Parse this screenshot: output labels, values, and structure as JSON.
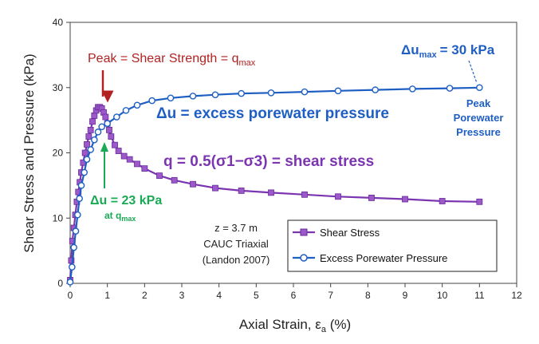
{
  "chart_data": {
    "type": "line",
    "xlabel": "Axial Strain, εa (%)",
    "ylabel": "Shear Stress and Pressure (kPa)",
    "xlim": [
      0,
      12
    ],
    "ylim": [
      0,
      40
    ],
    "x_ticks": [
      "0",
      "1",
      "2",
      "3",
      "4",
      "5",
      "6",
      "7",
      "8",
      "9",
      "10",
      "11",
      "12"
    ],
    "y_ticks": [
      "0",
      "10",
      "20",
      "30",
      "40"
    ],
    "grid": false,
    "legend_position": "bottom-right",
    "series": [
      {
        "name": "Shear Stress",
        "color": "#7b35b0",
        "marker": "square",
        "x": [
          0.0,
          0.03,
          0.06,
          0.1,
          0.14,
          0.18,
          0.22,
          0.26,
          0.3,
          0.35,
          0.4,
          0.45,
          0.5,
          0.55,
          0.6,
          0.65,
          0.7,
          0.75,
          0.8,
          0.85,
          0.9,
          0.95,
          1.0,
          1.05,
          1.1,
          1.2,
          1.3,
          1.45,
          1.6,
          1.8,
          2.0,
          2.4,
          2.8,
          3.3,
          3.9,
          4.6,
          5.4,
          6.3,
          7.2,
          8.1,
          9.0,
          10.0,
          11.0
        ],
        "y": [
          0.5,
          3.5,
          6.5,
          8.5,
          10.5,
          12.5,
          14.0,
          15.5,
          17.0,
          18.5,
          20.0,
          21.3,
          22.5,
          23.5,
          24.8,
          25.7,
          26.5,
          27.0,
          27.0,
          26.8,
          26.2,
          25.5,
          24.5,
          23.5,
          22.5,
          21.2,
          20.3,
          19.5,
          19.0,
          18.3,
          17.6,
          16.5,
          15.8,
          15.2,
          14.6,
          14.2,
          13.9,
          13.6,
          13.3,
          13.1,
          12.9,
          12.6,
          12.5
        ]
      },
      {
        "name": "Excess Porewater Pressure",
        "color": "#1f5fc4",
        "marker": "circle",
        "x": [
          0.0,
          0.05,
          0.1,
          0.15,
          0.2,
          0.25,
          0.3,
          0.38,
          0.45,
          0.55,
          0.65,
          0.75,
          0.85,
          1.0,
          1.25,
          1.5,
          1.8,
          2.2,
          2.7,
          3.3,
          3.9,
          4.6,
          5.4,
          6.3,
          7.2,
          8.2,
          9.2,
          10.2,
          11.0
        ],
        "y": [
          0.2,
          2.5,
          5.5,
          8.0,
          10.5,
          13.0,
          15.0,
          17.0,
          19.0,
          20.5,
          22.0,
          23.2,
          24.0,
          24.5,
          25.5,
          26.5,
          27.3,
          28.0,
          28.4,
          28.7,
          28.9,
          29.1,
          29.2,
          29.35,
          29.5,
          29.65,
          29.8,
          29.9,
          30.0
        ]
      }
    ],
    "annotations": {
      "peak_label": "Peak = Shear Strength = q",
      "peak_sub": "max",
      "du_max_label": "Δu",
      "du_max_sub": "max",
      "du_max_value": "= 30 kPa",
      "du_def": "Δu = excess porewater pressure",
      "peak_pwp_line1": "Peak",
      "peak_pwp_line2": "Porewater",
      "peak_pwp_line3": "Pressure",
      "q_def": "q = 0.5(σ1−σ3) = shear stress",
      "du_23": "Δu = 23  kPa",
      "du_23_at": "at q",
      "du_23_sub": "max",
      "z_label": "z = 3.7 m",
      "test_label": "CAUC Triaxial",
      "ref_label": "(Landon 2007)"
    },
    "colors": {
      "peak_red": "#b22222",
      "green": "#1aaa55",
      "blue": "#1f5fc4",
      "purple": "#7b35b0"
    }
  }
}
